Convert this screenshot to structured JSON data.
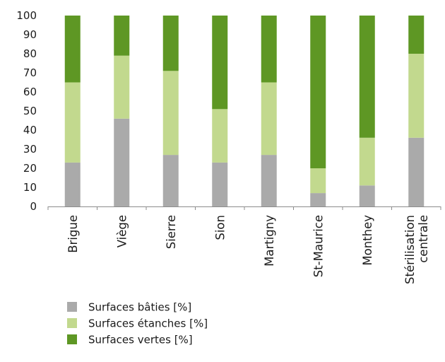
{
  "chart_data": {
    "type": "bar",
    "stacked": true,
    "orientation": "vertical",
    "categories": [
      [
        "Brigue"
      ],
      [
        "Viège"
      ],
      [
        "Sierre"
      ],
      [
        "Sion"
      ],
      [
        "Martigny"
      ],
      [
        "St-Maurice"
      ],
      [
        "Monthey"
      ],
      [
        "Stérilisation",
        "centrale"
      ]
    ],
    "series": [
      {
        "name": "Surfaces bâties [%]",
        "color": "#aaaaaa",
        "values": [
          23,
          46,
          27,
          23,
          27,
          7,
          11,
          36
        ]
      },
      {
        "name": "Surfaces étanches [%]",
        "color": "#c2d98e",
        "values": [
          42,
          33,
          44,
          28,
          38,
          13,
          25,
          44
        ]
      },
      {
        "name": "Surfaces vertes [%]",
        "color": "#5e9724",
        "values": [
          35,
          21,
          29,
          49,
          35,
          80,
          64,
          20
        ]
      }
    ],
    "ylim": [
      0,
      100
    ],
    "yticks": [
      0,
      10,
      20,
      30,
      40,
      50,
      60,
      70,
      80,
      90,
      100
    ],
    "grid": false,
    "legend_position": "bottom-left"
  }
}
